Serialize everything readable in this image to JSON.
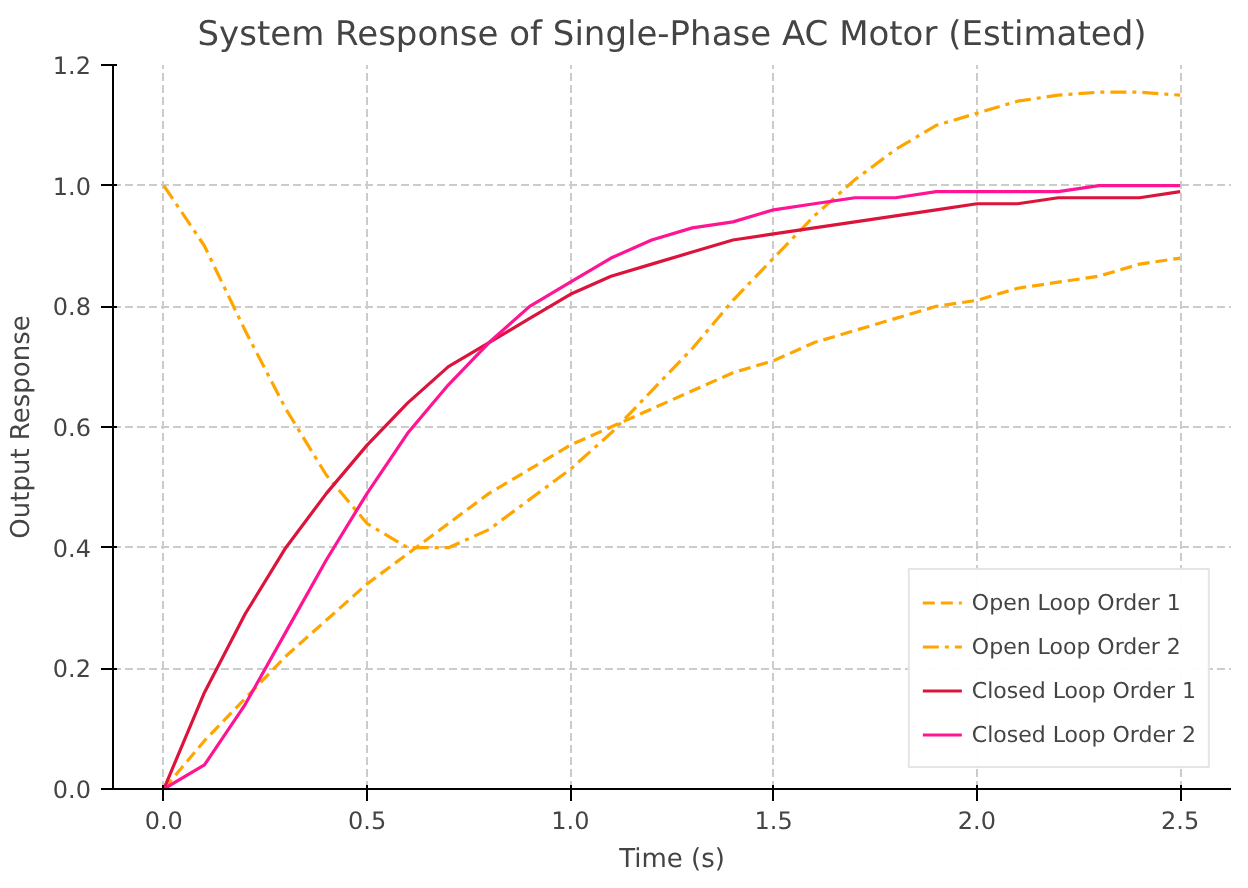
{
  "chart_data": {
    "type": "line",
    "title": "System Response of Single-Phase AC Motor (Estimated)",
    "xlabel": "Time (s)",
    "ylabel": "Output Response",
    "x": [
      0,
      0.1,
      0.2,
      0.3,
      0.4,
      0.5,
      0.6,
      0.7,
      0.8,
      0.9,
      1.0,
      1.1,
      1.2,
      1.3,
      1.4,
      1.5,
      1.6,
      1.7,
      1.8,
      1.9,
      2.0,
      2.1,
      2.2,
      2.3,
      2.4,
      2.5
    ],
    "series": [
      {
        "name": "Open Loop Order 1",
        "color": "#ffa500",
        "line_style": "dashed",
        "values": [
          0,
          0.08,
          0.15,
          0.22,
          0.28,
          0.34,
          0.39,
          0.44,
          0.49,
          0.53,
          0.57,
          0.6,
          0.63,
          0.66,
          0.69,
          0.71,
          0.74,
          0.76,
          0.78,
          0.8,
          0.81,
          0.83,
          0.84,
          0.85,
          0.87,
          0.88
        ]
      },
      {
        "name": "Open Loop Order 2",
        "color": "#ffa500",
        "line_style": "dashdot",
        "values": [
          1.0,
          0.9,
          0.76,
          0.63,
          0.52,
          0.44,
          0.4,
          0.4,
          0.43,
          0.48,
          0.53,
          0.59,
          0.66,
          0.73,
          0.81,
          0.88,
          0.95,
          1.01,
          1.06,
          1.1,
          1.12,
          1.14,
          1.15,
          1.155,
          1.155,
          1.15
        ]
      },
      {
        "name": "Closed Loop Order 1",
        "color": "#dc143c",
        "line_style": "solid",
        "values": [
          0,
          0.16,
          0.29,
          0.4,
          0.49,
          0.57,
          0.64,
          0.7,
          0.74,
          0.78,
          0.82,
          0.85,
          0.87,
          0.89,
          0.91,
          0.92,
          0.93,
          0.94,
          0.95,
          0.96,
          0.97,
          0.97,
          0.98,
          0.98,
          0.98,
          0.99
        ]
      },
      {
        "name": "Closed Loop Order 2",
        "color": "#ff1493",
        "line_style": "solid",
        "values": [
          0,
          0.04,
          0.14,
          0.26,
          0.38,
          0.49,
          0.59,
          0.67,
          0.74,
          0.8,
          0.84,
          0.88,
          0.91,
          0.93,
          0.94,
          0.96,
          0.97,
          0.98,
          0.98,
          0.99,
          0.99,
          0.99,
          0.99,
          1.0,
          1.0,
          1.0
        ]
      }
    ],
    "xlim": [
      -0.125,
      2.625
    ],
    "ylim": [
      0,
      1.2
    ],
    "xticks": [
      {
        "value": 0,
        "label": "0.0"
      },
      {
        "value": 0.5,
        "label": "0.5"
      },
      {
        "value": 1.0,
        "label": "1.0"
      },
      {
        "value": 1.5,
        "label": "1.5"
      },
      {
        "value": 2.0,
        "label": "2.0"
      },
      {
        "value": 2.5,
        "label": "2.5"
      }
    ],
    "yticks": [
      {
        "value": 0,
        "label": "0.0"
      },
      {
        "value": 0.2,
        "label": "0.2"
      },
      {
        "value": 0.4,
        "label": "0.4"
      },
      {
        "value": 0.6,
        "label": "0.6"
      },
      {
        "value": 0.8,
        "label": "0.8"
      },
      {
        "value": 1.0,
        "label": "1.0"
      },
      {
        "value": 1.2,
        "label": "1.2"
      }
    ],
    "grid": true,
    "legend": "bottom right"
  }
}
